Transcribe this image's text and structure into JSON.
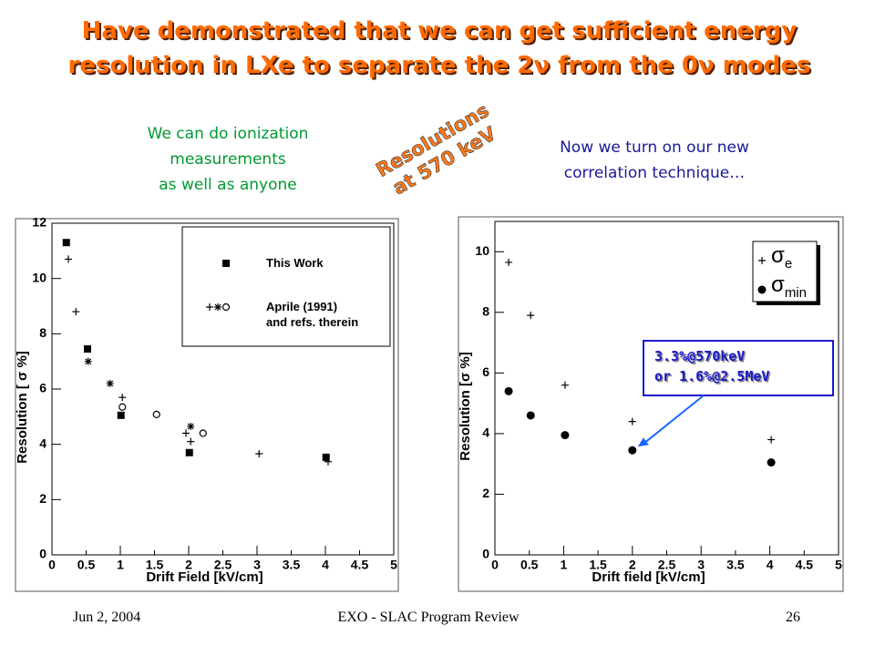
{
  "slide": {
    "title": [
      "Have demonstrated that we can get sufficient energy",
      "resolution in LXe to separate the 2ν from the 0ν modes"
    ],
    "left_caption": [
      "We can do ionization",
      "measurements",
      "as well as anyone"
    ],
    "right_caption": [
      "Now we turn on our new",
      "correlation technique…"
    ],
    "stamp": [
      "Resolutions",
      "at 570 keV"
    ],
    "footer_date": "Jun 2, 2004",
    "footer_center": "EXO - SLAC Program Review",
    "page_number": "26"
  },
  "chart_data": [
    {
      "type": "scatter",
      "xlabel": "Drift Field [kV/cm]",
      "ylabel": "Resolution [ σ %]",
      "xlim": [
        0,
        5
      ],
      "ylim": [
        0,
        12
      ],
      "xticks": [
        0,
        0.5,
        1,
        1.5,
        2,
        2.5,
        3,
        3.5,
        4,
        4.5,
        5
      ],
      "yticks": [
        0,
        2,
        4,
        6,
        8,
        10,
        12
      ],
      "series": [
        {
          "name": "This Work",
          "color": "#000000",
          "marker": "square",
          "x": [
            0.21,
            0.52,
            1.01,
            2.01,
            4.01
          ],
          "y": [
            11.3,
            7.45,
            5.05,
            3.7,
            3.53
          ]
        },
        {
          "name": [
            "Aprile (1991)",
            "and refs. therein"
          ],
          "color": "#000000",
          "legend_markers": [
            "plus",
            "star",
            "circle"
          ],
          "markers": [
            "plus",
            "plus",
            "star",
            "star",
            "plus",
            "circle",
            "circle",
            "plus",
            "star",
            "plus",
            "circle",
            "plus",
            "plus"
          ],
          "x": [
            0.24,
            0.35,
            0.53,
            0.85,
            1.03,
            1.03,
            1.53,
            1.96,
            2.03,
            2.03,
            2.21,
            3.03,
            4.04
          ],
          "y": [
            10.7,
            8.8,
            7.0,
            6.2,
            5.7,
            5.35,
            5.08,
            4.4,
            4.65,
            4.1,
            4.4,
            3.66,
            3.37
          ]
        }
      ]
    },
    {
      "type": "scatter",
      "xlabel": "Drift field [kV/cm]",
      "ylabel": "Resolution [σ %]",
      "xlim": [
        0,
        5
      ],
      "ylim": [
        0,
        11
      ],
      "xticks": [
        0,
        0.5,
        1,
        1.5,
        2,
        2.5,
        3,
        3.5,
        4,
        4.5,
        5
      ],
      "yticks": [
        0,
        2,
        4,
        6,
        8,
        10
      ],
      "series": [
        {
          "name": "σ",
          "name_sub": "e",
          "color": "#000000",
          "marker": "plus",
          "x": [
            0.2,
            0.52,
            1.02,
            2.0,
            4.02
          ],
          "y": [
            9.65,
            7.9,
            5.6,
            4.4,
            3.8
          ]
        },
        {
          "name": "σ",
          "name_sub": "min",
          "color": "#000000",
          "marker": "dot",
          "x": [
            0.2,
            0.52,
            1.02,
            2.0,
            4.02
          ],
          "y": [
            5.4,
            4.6,
            3.95,
            3.45,
            3.05
          ]
        }
      ],
      "annotation": [
        "3.3%@570keV",
        "or 1.6%@2.5MeV"
      ]
    }
  ]
}
